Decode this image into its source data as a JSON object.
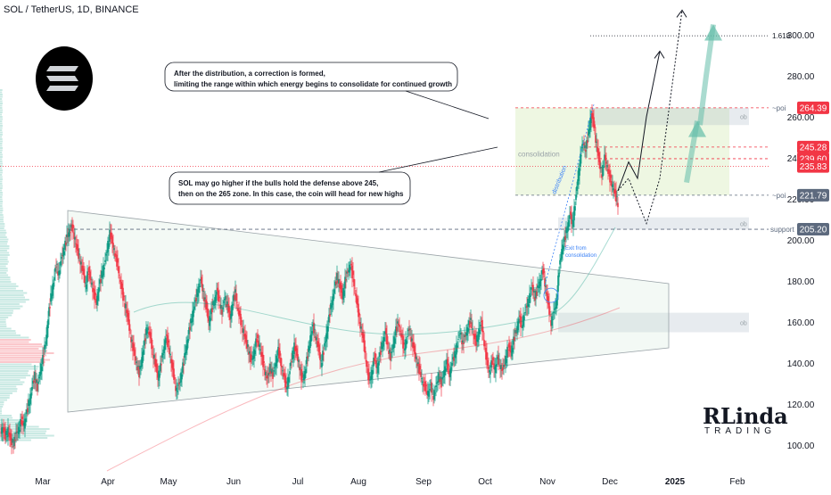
{
  "header": {
    "symbol_title": "SOL / TetherUS, 1D, BINANCE"
  },
  "chart_data": {
    "type": "candlestick",
    "ylim": [
      85,
      318
    ],
    "y_ticks": [
      "300.00",
      "280.00",
      "260.00",
      "240.00",
      "220.00",
      "200.00",
      "180.00",
      "160.00",
      "140.00",
      "120.00",
      "100.00"
    ],
    "x_labels": [
      "Mar",
      "Apr",
      "May",
      "Jun",
      "Jul",
      "Aug",
      "Sep",
      "Oct",
      "Nov",
      "Dec",
      "2025",
      "Feb"
    ],
    "price_tags": [
      {
        "label": "264.39",
        "value": 264.39,
        "color": "#f23645"
      },
      {
        "label": "245.28",
        "value": 245.28,
        "color": "#f23645"
      },
      {
        "label": "239.60",
        "value": 239.6,
        "color": "#f23645"
      },
      {
        "label": "235.83",
        "value": 235.83,
        "color": "#f23645"
      },
      {
        "label": "221.79",
        "value": 221.79,
        "color": "#5d6a7e"
      },
      {
        "label": "205.20",
        "value": 205.2,
        "color": "#5d6a7e"
      }
    ],
    "levels": [
      {
        "label": "1.618",
        "value": 299.5
      },
      {
        "label": "~poi",
        "value": 264.4
      },
      {
        "label": "~poi",
        "value": 221.8
      },
      {
        "label": "support",
        "value": 205.2
      }
    ],
    "zones": [
      {
        "label": "ob",
        "top": 264.4,
        "bottom": 256
      },
      {
        "label": "ob",
        "top": 211,
        "bottom": 205
      },
      {
        "label": "ob",
        "top": 164.5,
        "bottom": 155
      }
    ],
    "annotations": [
      {
        "id": "note1",
        "lines": [
          "After the distribution, a correction is formed,",
          "limiting the range within which energy begins to consolidate for continued growth"
        ]
      },
      {
        "id": "note2",
        "lines": [
          "SOL may go higher if the bulls hold the defense above 245,",
          "then on the 265 zone. In this case, the coin will head for new highs"
        ]
      },
      {
        "id": "consolidation",
        "text": "consolidation"
      },
      {
        "id": "distribution",
        "text": "distribution"
      },
      {
        "id": "exit",
        "lines": [
          "Exit from",
          "consolidation"
        ]
      }
    ],
    "series": [
      {
        "type": "daily_close",
        "points": [
          [
            0,
            106
          ],
          [
            3,
            109
          ],
          [
            6,
            104
          ],
          [
            9,
            107
          ],
          [
            12,
            102
          ],
          [
            15,
            101
          ],
          [
            18,
            105
          ],
          [
            21,
            108
          ],
          [
            24,
            112
          ],
          [
            27,
            110
          ],
          [
            30,
            116
          ],
          [
            33,
            122
          ],
          [
            36,
            128
          ],
          [
            39,
            134
          ],
          [
            42,
            128
          ],
          [
            45,
            136
          ],
          [
            48,
            142
          ],
          [
            51,
            150
          ],
          [
            54,
            162
          ],
          [
            57,
            172
          ],
          [
            60,
            180
          ],
          [
            63,
            188
          ],
          [
            66,
            183
          ],
          [
            69,
            192
          ],
          [
            72,
            196
          ],
          [
            75,
            201
          ],
          [
            78,
            205
          ],
          [
            81,
            206
          ],
          [
            84,
            200
          ],
          [
            87,
            194
          ],
          [
            90,
            190
          ],
          [
            93,
            184
          ],
          [
            96,
            178
          ],
          [
            99,
            185
          ],
          [
            102,
            180
          ],
          [
            105,
            174
          ],
          [
            108,
            170
          ],
          [
            111,
            177
          ],
          [
            114,
            183
          ],
          [
            117,
            188
          ],
          [
            120,
            195
          ],
          [
            123,
            203
          ],
          [
            126,
            199
          ],
          [
            129,
            193
          ],
          [
            132,
            187
          ],
          [
            135,
            180
          ],
          [
            138,
            172
          ],
          [
            141,
            167
          ],
          [
            144,
            160
          ],
          [
            147,
            152
          ],
          [
            150,
            145
          ],
          [
            153,
            140
          ],
          [
            156,
            135
          ],
          [
            159,
            142
          ],
          [
            162,
            150
          ],
          [
            165,
            158
          ],
          [
            168,
            153
          ],
          [
            171,
            146
          ],
          [
            174,
            140
          ],
          [
            177,
            133
          ],
          [
            180,
            138
          ],
          [
            183,
            146
          ],
          [
            186,
            153
          ],
          [
            189,
            148
          ],
          [
            192,
            141
          ],
          [
            195,
            133
          ],
          [
            198,
            126
          ],
          [
            201,
            130
          ],
          [
            204,
            136
          ],
          [
            207,
            143
          ],
          [
            210,
            151
          ],
          [
            213,
            158
          ],
          [
            216,
            164
          ],
          [
            219,
            170
          ],
          [
            222,
            176
          ],
          [
            225,
            180
          ],
          [
            228,
            174
          ],
          [
            231,
            168
          ],
          [
            234,
            160
          ],
          [
            237,
            165
          ],
          [
            240,
            170
          ],
          [
            243,
            175
          ],
          [
            246,
            170
          ],
          [
            249,
            165
          ],
          [
            252,
            172
          ],
          [
            255,
            168
          ],
          [
            258,
            162
          ],
          [
            261,
            170
          ],
          [
            264,
            174
          ],
          [
            267,
            166
          ],
          [
            270,
            160
          ],
          [
            273,
            155
          ],
          [
            276,
            150
          ],
          [
            279,
            146
          ],
          [
            282,
            140
          ],
          [
            285,
            146
          ],
          [
            288,
            152
          ],
          [
            291,
            148
          ],
          [
            294,
            142
          ],
          [
            297,
            136
          ],
          [
            300,
            132
          ],
          [
            303,
            138
          ],
          [
            306,
            134
          ],
          [
            309,
            140
          ],
          [
            312,
            146
          ],
          [
            315,
            140
          ],
          [
            318,
            134
          ],
          [
            321,
            128
          ],
          [
            324,
            134
          ],
          [
            327,
            142
          ],
          [
            330,
            148
          ],
          [
            333,
            144
          ],
          [
            336,
            138
          ],
          [
            339,
            131
          ],
          [
            342,
            136
          ],
          [
            345,
            144
          ],
          [
            348,
            152
          ],
          [
            351,
            158
          ],
          [
            354,
            153
          ],
          [
            357,
            147
          ],
          [
            360,
            140
          ],
          [
            363,
            146
          ],
          [
            366,
            154
          ],
          [
            369,
            162
          ],
          [
            372,
            170
          ],
          [
            375,
            176
          ],
          [
            378,
            182
          ],
          [
            381,
            178
          ],
          [
            384,
            172
          ],
          [
            387,
            180
          ],
          [
            390,
            185
          ],
          [
            393,
            188
          ],
          [
            396,
            181
          ],
          [
            399,
            173
          ],
          [
            402,
            164
          ],
          [
            405,
            156
          ],
          [
            408,
            150
          ],
          [
            411,
            140
          ],
          [
            414,
            130
          ],
          [
            417,
            136
          ],
          [
            420,
            143
          ],
          [
            423,
            137
          ],
          [
            426,
            144
          ],
          [
            429,
            150
          ],
          [
            432,
            155
          ],
          [
            435,
            148
          ],
          [
            438,
            143
          ],
          [
            441,
            149
          ],
          [
            444,
            156
          ],
          [
            447,
            160
          ],
          [
            450,
            153
          ],
          [
            453,
            147
          ],
          [
            456,
            152
          ],
          [
            459,
            157
          ],
          [
            462,
            150
          ],
          [
            465,
            145
          ],
          [
            468,
            140
          ],
          [
            471,
            135
          ],
          [
            474,
            131
          ],
          [
            477,
            128
          ],
          [
            480,
            125
          ],
          [
            483,
            129
          ],
          [
            486,
            124
          ],
          [
            489,
            128
          ],
          [
            492,
            134
          ],
          [
            495,
            130
          ],
          [
            498,
            136
          ],
          [
            501,
            140
          ],
          [
            504,
            135
          ],
          [
            507,
            140
          ],
          [
            510,
            144
          ],
          [
            513,
            150
          ],
          [
            516,
            155
          ],
          [
            519,
            149
          ],
          [
            522,
            154
          ],
          [
            525,
            158
          ],
          [
            528,
            160
          ],
          [
            531,
            154
          ],
          [
            534,
            150
          ],
          [
            537,
            155
          ],
          [
            540,
            160
          ],
          [
            543,
            150
          ],
          [
            546,
            140
          ],
          [
            549,
            136
          ],
          [
            552,
            141
          ],
          [
            555,
            137
          ],
          [
            558,
            142
          ],
          [
            561,
            139
          ],
          [
            564,
            136
          ],
          [
            567,
            142
          ],
          [
            570,
            148
          ],
          [
            573,
            145
          ],
          [
            576,
            151
          ],
          [
            579,
            156
          ],
          [
            582,
            162
          ],
          [
            585,
            158
          ],
          [
            588,
            164
          ],
          [
            591,
            168
          ],
          [
            594,
            172
          ],
          [
            597,
            178
          ],
          [
            600,
            172
          ],
          [
            603,
            176
          ],
          [
            606,
            181
          ],
          [
            609,
            185
          ],
          [
            612,
            176
          ],
          [
            615,
            168
          ],
          [
            618,
            160
          ],
          [
            621,
            164
          ],
          [
            624,
            170
          ],
          [
            627,
            186
          ],
          [
            630,
            195
          ],
          [
            633,
            200
          ],
          [
            636,
            206
          ],
          [
            639,
            212
          ],
          [
            642,
            208
          ],
          [
            645,
            218
          ],
          [
            648,
            230
          ],
          [
            651,
            240
          ],
          [
            654,
            248
          ],
          [
            657,
            244
          ],
          [
            660,
            252
          ],
          [
            663,
            262
          ],
          [
            666,
            256
          ],
          [
            669,
            246
          ],
          [
            672,
            238
          ],
          [
            675,
            232
          ],
          [
            678,
            240
          ],
          [
            681,
            236
          ],
          [
            684,
            230
          ],
          [
            687,
            226
          ],
          [
            690,
            222
          ],
          [
            693,
            218
          ]
        ]
      }
    ],
    "projections": [
      {
        "id": "path-1",
        "points": [
          [
            693,
            224
          ],
          [
            705,
            238
          ],
          [
            715,
            230
          ],
          [
            725,
            260
          ],
          [
            740,
            292
          ]
        ]
      },
      {
        "id": "path-2",
        "points": [
          [
            693,
            224
          ],
          [
            705,
            230
          ],
          [
            725,
            208
          ],
          [
            740,
            230
          ],
          [
            765,
            312
          ]
        ]
      },
      {
        "id": "arrow-up",
        "points": [
          [
            770,
            228
          ],
          [
            790,
            268
          ],
          [
            800,
            305
          ]
        ]
      }
    ]
  },
  "brand": {
    "top": "RLinda",
    "bottom": "TRADING"
  }
}
